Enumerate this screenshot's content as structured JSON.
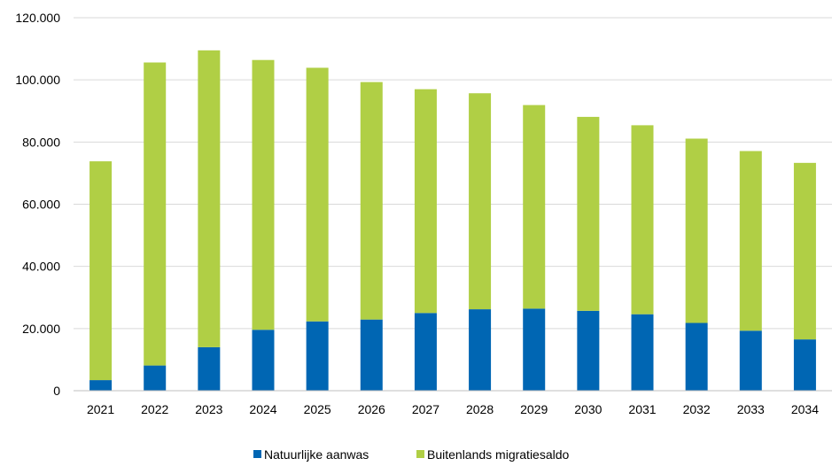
{
  "chart_data": {
    "type": "bar",
    "stacked": true,
    "title": "",
    "xlabel": "",
    "ylabel": "",
    "ylim": [
      0,
      120000
    ],
    "yticks": [
      0,
      20000,
      40000,
      60000,
      80000,
      100000,
      120000
    ],
    "ytick_labels": [
      "0",
      "20.000",
      "40.000",
      "60.000",
      "80.000",
      "100.000",
      "120.000"
    ],
    "grid": true,
    "legend_position": "bottom",
    "categories": [
      "2021",
      "2022",
      "2023",
      "2024",
      "2025",
      "2026",
      "2027",
      "2028",
      "2029",
      "2030",
      "2031",
      "2032",
      "2033",
      "2034"
    ],
    "series": [
      {
        "name": "Natuurlijke aanwas",
        "color": "#0066b3",
        "values": [
          3400,
          8100,
          14000,
          19600,
          22300,
          22900,
          25000,
          26200,
          26400,
          25700,
          24600,
          21800,
          19300,
          16500
        ]
      },
      {
        "name": "Buitenlands migratiesaldo",
        "color": "#b0cf45",
        "values": [
          70400,
          97500,
          95500,
          86800,
          81600,
          76400,
          72000,
          69500,
          65500,
          62400,
          60800,
          59300,
          57800,
          56800
        ]
      }
    ]
  }
}
